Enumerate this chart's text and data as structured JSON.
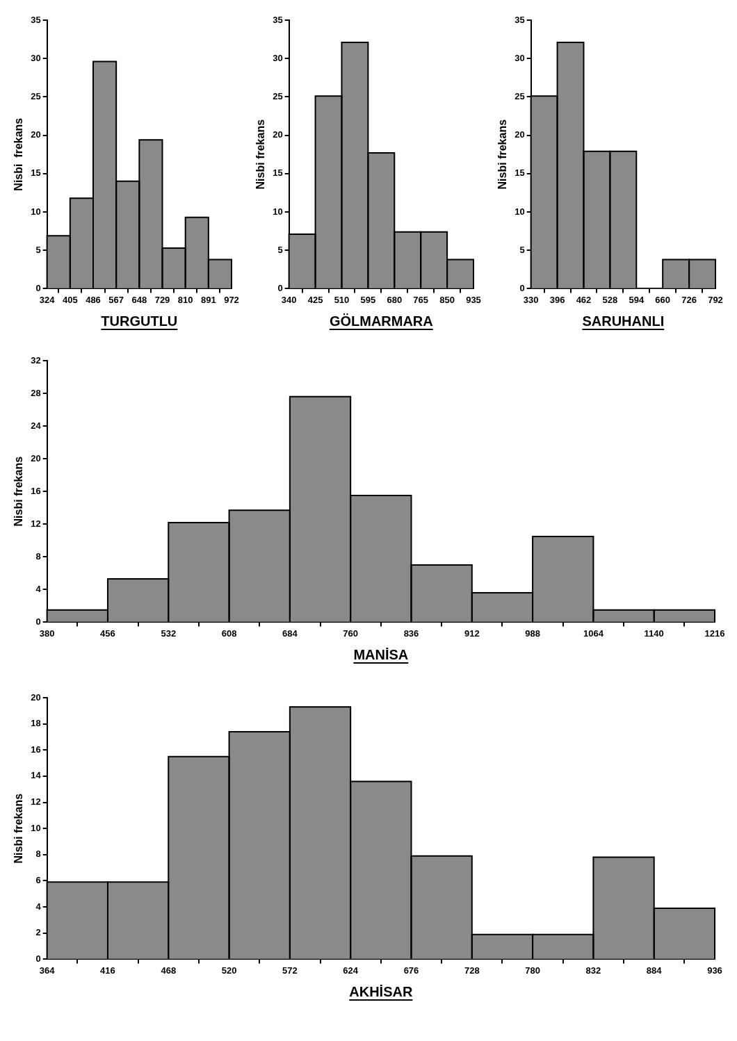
{
  "chart_data": [
    {
      "type": "histogram",
      "title": "TURGUTLU",
      "ylabel": "Nisbi  frekans",
      "color": "#8a8a8a",
      "grid": false,
      "legend": false,
      "bins": [
        324,
        405,
        486,
        567,
        648,
        729,
        810,
        891,
        972
      ],
      "values": [
        6.9,
        11.8,
        29.6,
        14.0,
        19.4,
        5.3,
        9.3,
        3.8
      ],
      "xlim": [
        324,
        972
      ],
      "xticks": [
        324,
        405,
        486,
        567,
        648,
        729,
        810,
        891,
        972
      ],
      "ylim": [
        0,
        35
      ],
      "yticks": [
        0,
        5,
        10,
        15,
        20,
        25,
        30,
        35
      ]
    },
    {
      "type": "histogram",
      "title": "GÖLMARMARA",
      "ylabel": "Nisbi frekans",
      "color": "#8a8a8a",
      "grid": false,
      "legend": false,
      "bins": [
        340,
        425,
        510,
        595,
        680,
        765,
        850,
        935
      ],
      "values": [
        7.1,
        25.1,
        32.1,
        17.7,
        7.4,
        7.4,
        3.8
      ],
      "xlim": [
        340,
        935
      ],
      "xticks": [
        340,
        425,
        510,
        595,
        680,
        765,
        850,
        935
      ],
      "ylim": [
        0,
        35
      ],
      "yticks": [
        0,
        5,
        10,
        15,
        20,
        25,
        30,
        35
      ]
    },
    {
      "type": "histogram",
      "title": "SARUHANLI",
      "ylabel": "Nisbi frekans",
      "color": "#8a8a8a",
      "grid": false,
      "legend": false,
      "bins": [
        330,
        396,
        462,
        528,
        594,
        660,
        726,
        792
      ],
      "values": [
        25.1,
        32.1,
        17.9,
        17.9,
        0,
        3.8,
        3.8
      ],
      "xlim": [
        330,
        792
      ],
      "xticks": [
        330,
        396,
        462,
        528,
        594,
        660,
        726,
        792
      ],
      "ylim": [
        0,
        35
      ],
      "yticks": [
        0,
        5,
        10,
        15,
        20,
        25,
        30,
        35
      ]
    },
    {
      "type": "histogram",
      "title": "MANİSA",
      "ylabel": "Nisbi frekans",
      "color": "#8a8a8a",
      "grid": false,
      "legend": false,
      "bins": [
        380,
        456,
        532,
        608,
        684,
        760,
        836,
        912,
        988,
        1064,
        1140,
        1216
      ],
      "values": [
        1.5,
        5.3,
        12.2,
        13.7,
        27.6,
        15.5,
        7.0,
        3.6,
        10.5,
        1.5,
        1.5
      ],
      "xlim": [
        380,
        1216
      ],
      "xticks": [
        380,
        456,
        532,
        608,
        684,
        760,
        836,
        912,
        988,
        1064,
        1140,
        1216
      ],
      "ylim": [
        0,
        32
      ],
      "yticks": [
        0,
        4,
        8,
        12,
        16,
        20,
        24,
        28,
        32
      ]
    },
    {
      "type": "histogram",
      "title": "AKHİSAR",
      "ylabel": "Nisbi frekans",
      "color": "#8a8a8a",
      "grid": false,
      "legend": false,
      "bins": [
        364,
        416,
        468,
        520,
        572,
        624,
        676,
        728,
        780,
        832,
        884,
        936
      ],
      "values": [
        5.9,
        5.9,
        15.5,
        17.4,
        19.3,
        13.6,
        7.9,
        1.9,
        1.9,
        7.8,
        3.9
      ],
      "xlim": [
        364,
        936
      ],
      "xticks": [
        364,
        416,
        468,
        520,
        572,
        624,
        676,
        728,
        780,
        832,
        884,
        936
      ],
      "ylim": [
        0,
        20
      ],
      "yticks": [
        0,
        2,
        4,
        6,
        8,
        10,
        12,
        14,
        16,
        18,
        20
      ]
    }
  ]
}
